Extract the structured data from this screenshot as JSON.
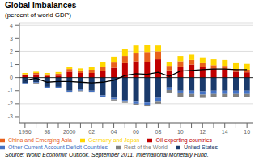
{
  "chart_data": {
    "type": "bar",
    "title": "Global Imbalances",
    "subtitle": "(percent of world GDP)",
    "source": "Source: World Economic Outlook, September 2011. International Monetary Fund.",
    "categories": [
      "1996",
      null,
      "98",
      null,
      "2000",
      null,
      "02",
      null,
      "04",
      null,
      "06",
      null,
      "08",
      null,
      "10",
      null,
      "12",
      null,
      "14",
      null,
      "16"
    ],
    "stacked": true,
    "grid": "y",
    "legend": "lower left",
    "ylim": [
      -3.5,
      4.2
    ],
    "yticks": [
      -3,
      -2,
      -1,
      0,
      1,
      2,
      3,
      4
    ],
    "series": [
      {
        "name": "Oil exporting countries",
        "type": "bar",
        "color": "#C00000",
        "values": [
          0.2,
          0.25,
          0.1,
          0.15,
          0.45,
          0.35,
          0.35,
          0.5,
          0.75,
          1.1,
          1.25,
          1.2,
          1.4,
          0.55,
          0.85,
          1.0,
          0.8,
          0.7,
          0.65,
          0.45,
          0.4
        ]
      },
      {
        "name": "China and Emerging Asia",
        "type": "bar",
        "color": "#E8601C",
        "values": [
          0.05,
          0.1,
          0.15,
          0.15,
          0.2,
          0.2,
          0.25,
          0.35,
          0.4,
          0.55,
          0.65,
          0.75,
          0.6,
          0.35,
          0.4,
          0.35,
          0.3,
          0.25,
          0.25,
          0.2,
          0.2
        ]
      },
      {
        "name": "Germany and Japan",
        "type": "bar",
        "color": "#FFD700",
        "values": [
          0.1,
          0.1,
          0.1,
          0.12,
          0.15,
          0.15,
          0.2,
          0.3,
          0.45,
          0.5,
          0.55,
          0.55,
          0.45,
          0.3,
          0.4,
          0.4,
          0.45,
          0.45,
          0.45,
          0.45,
          0.45
        ]
      },
      {
        "name": "United States",
        "type": "bar",
        "color": "#1A3A6B",
        "values": [
          -0.4,
          -0.35,
          -0.7,
          -0.7,
          -1.0,
          -0.9,
          -1.0,
          -1.35,
          -1.55,
          -1.7,
          -1.85,
          -1.9,
          -1.55,
          -0.75,
          -1.0,
          -1.0,
          -1.05,
          -1.0,
          -1.0,
          -1.0,
          -1.0
        ]
      },
      {
        "name": "Other Current Account Deficit Countries",
        "type": "bar",
        "color": "#4472C4",
        "values": [
          -0.05,
          -0.05,
          -0.08,
          -0.08,
          -0.1,
          -0.1,
          -0.1,
          -0.1,
          -0.12,
          -0.15,
          -0.15,
          -0.2,
          -0.3,
          -0.2,
          -0.2,
          -0.25,
          -0.25,
          -0.25,
          -0.25,
          -0.25,
          -0.25
        ]
      },
      {
        "name": "Rest of the World",
        "type": "bar",
        "color": "#808080",
        "values": [
          -0.05,
          -0.05,
          -0.05,
          -0.05,
          -0.05,
          -0.05,
          -0.05,
          -0.05,
          -0.08,
          -0.08,
          -0.08,
          -0.1,
          -0.15,
          -0.25,
          -0.25,
          -0.25,
          -0.25,
          -0.25,
          -0.25,
          -0.25,
          -0.25
        ]
      },
      {
        "type": "line",
        "color": "#000000",
        "values": [
          -0.2,
          -0.05,
          -0.35,
          -0.3,
          -0.3,
          -0.35,
          -0.4,
          -0.35,
          -0.2,
          0.15,
          0.3,
          0.25,
          0.4,
          0.1,
          0.5,
          0.55,
          0.6,
          0.65,
          0.65,
          0.6,
          0.6
        ]
      }
    ]
  }
}
